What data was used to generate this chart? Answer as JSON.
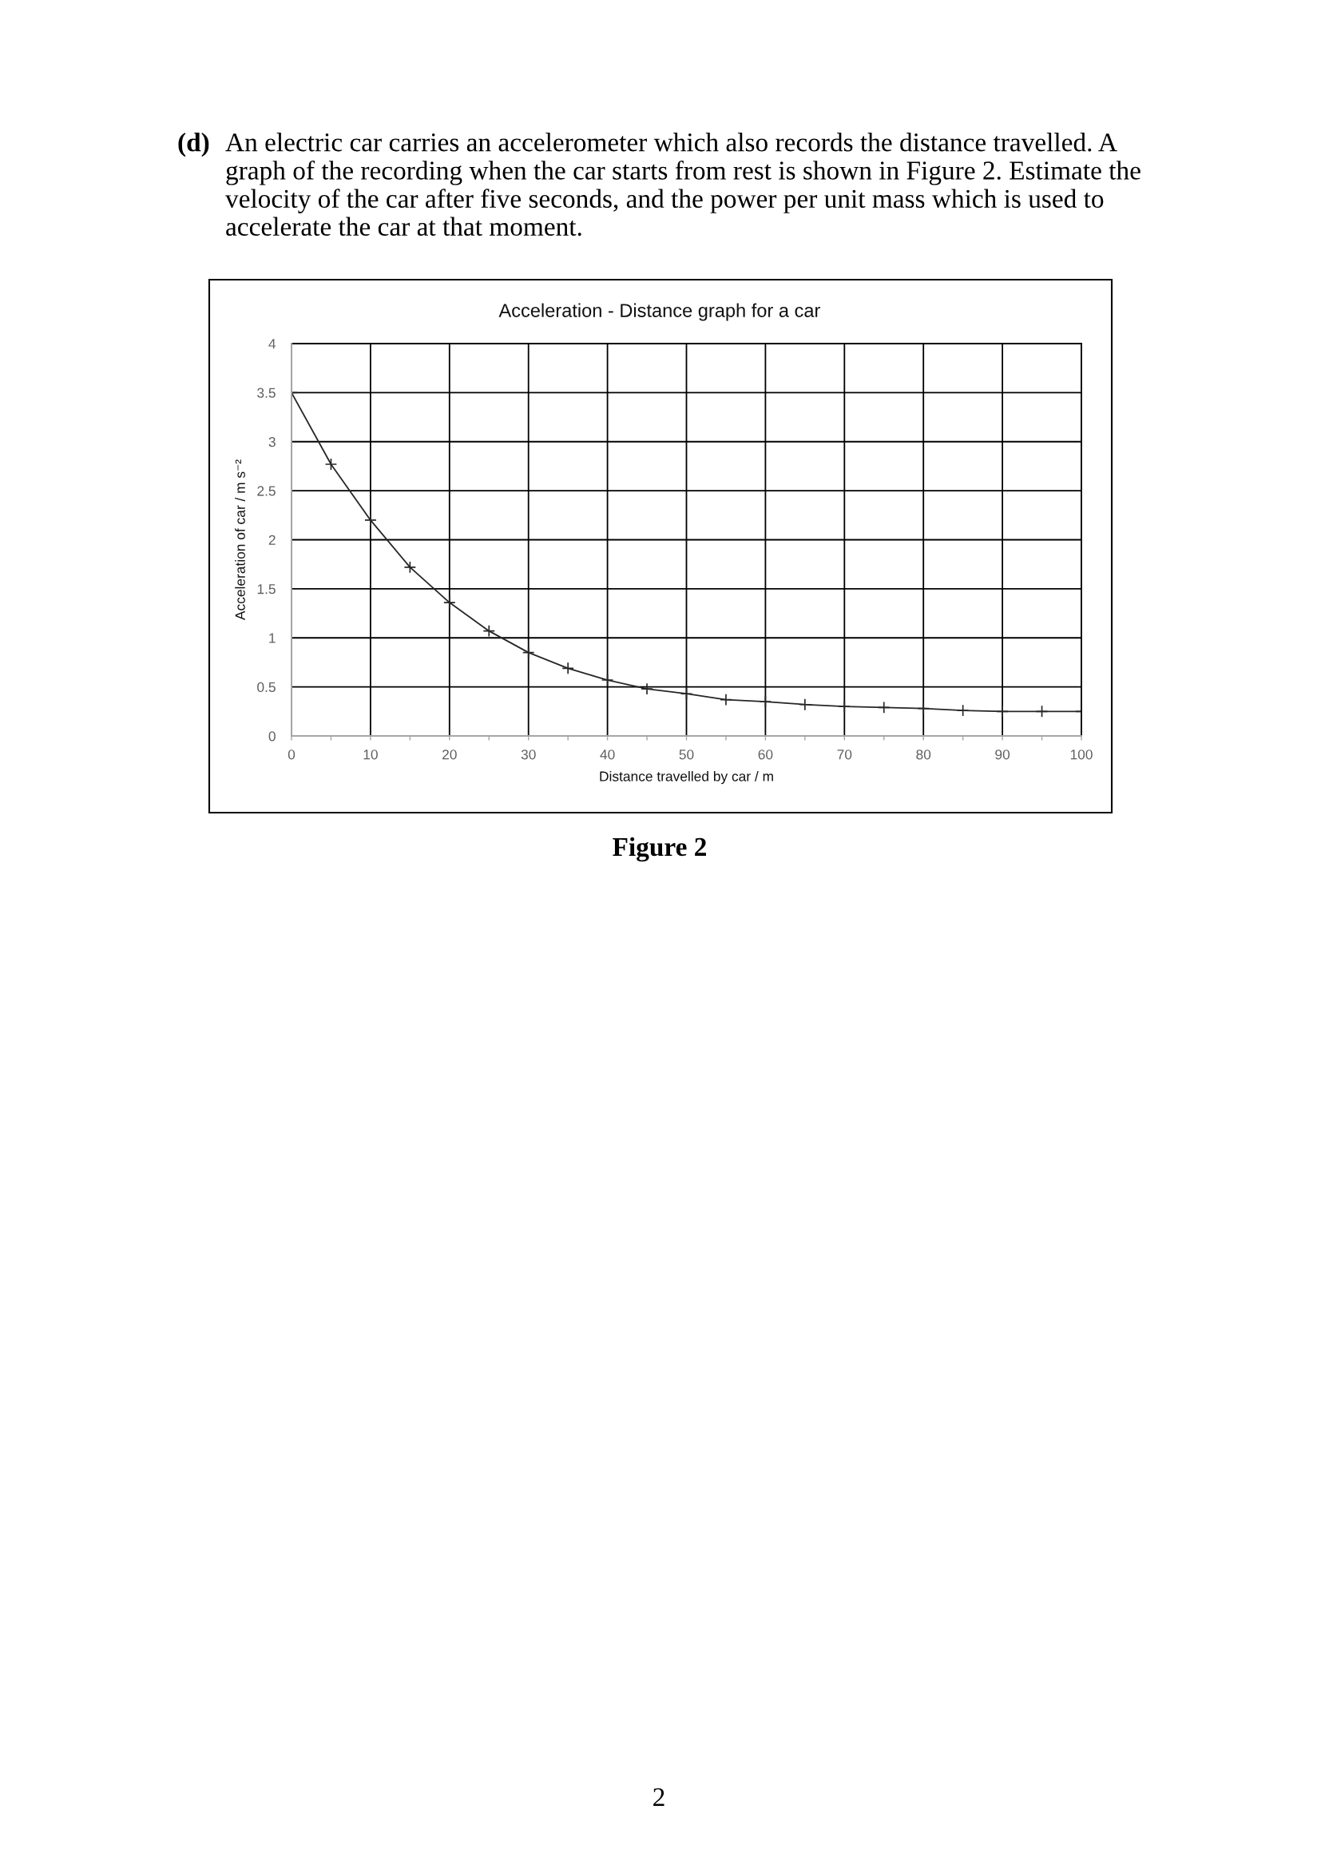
{
  "chart_data": {
    "type": "line",
    "title": "Acceleration - Distance graph for a car",
    "xlabel": "Distance travelled by car / m",
    "ylabel": "Acceleration of car / m s⁻²",
    "x": [
      0,
      5,
      10,
      15,
      20,
      25,
      30,
      35,
      40,
      45,
      50,
      55,
      60,
      65,
      70,
      75,
      80,
      85,
      90,
      95,
      100
    ],
    "series": [
      {
        "color": "#262626",
        "values": [
          3.5,
          2.77,
          2.2,
          1.72,
          1.36,
          1.07,
          0.85,
          0.69,
          0.57,
          0.48,
          0.43,
          0.37,
          0.35,
          0.32,
          0.3,
          0.29,
          0.28,
          0.26,
          0.25,
          0.25,
          0.25
        ]
      }
    ],
    "xlim": [
      0,
      100
    ],
    "xticks": [
      0,
      10,
      20,
      30,
      40,
      50,
      60,
      70,
      80,
      90,
      100
    ],
    "ylim": [
      0,
      4
    ],
    "yticks": [
      0,
      0.5,
      1,
      1.5,
      2,
      2.5,
      3,
      3.5,
      4
    ],
    "grid": true,
    "marker": "cross",
    "line_style": "solid",
    "annotations": [
      "(d)",
      "An electric car carries an accelerometer which also records the distance travelled. A graph of the recording when the car starts from rest is shown in Figure 2. Estimate the velocity of the car after five seconds, and the power per unit mass which is used to accelerate the car at that moment.",
      "Figure 2",
      "2"
    ]
  }
}
